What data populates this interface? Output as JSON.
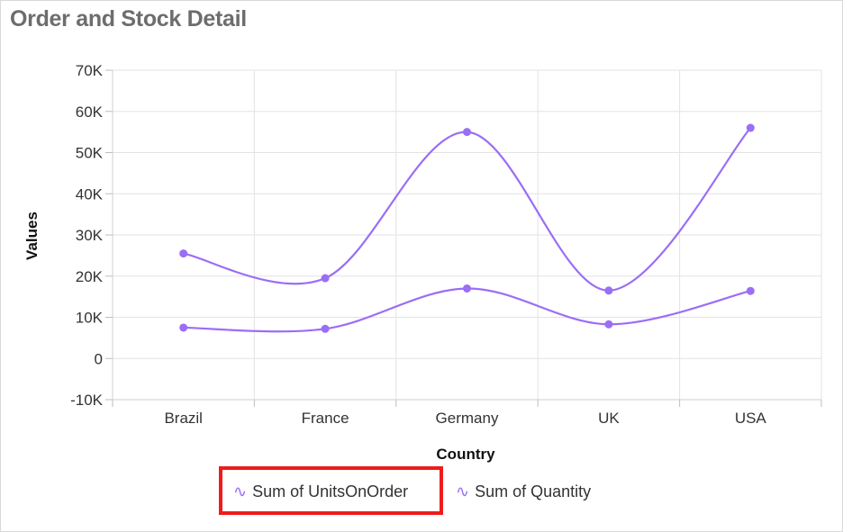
{
  "title": "Order and Stock Detail",
  "colors": {
    "series": "#9a6ef5",
    "grid": "#e3e3e3",
    "highlight": "#ee1c1c",
    "title": "#6d6d6d"
  },
  "legend": {
    "icon": "line-series-icon",
    "items": [
      "Sum of UnitsOnOrder",
      "Sum of Quantity"
    ],
    "highlighted_index": 0
  },
  "chart_data": {
    "type": "line",
    "smooth": true,
    "categories": [
      "Brazil",
      "France",
      "Germany",
      "UK",
      "USA"
    ],
    "series": [
      {
        "name": "Sum of UnitsOnOrder",
        "values": [
          7500,
          7200,
          17000,
          8300,
          16400
        ]
      },
      {
        "name": "Sum of Quantity",
        "values": [
          25500,
          19500,
          55000,
          16500,
          56000
        ]
      }
    ],
    "xlabel": "Country",
    "ylabel": "Values",
    "ylim": [
      -10000,
      70000
    ],
    "yticks": [
      -10000,
      0,
      10000,
      20000,
      30000,
      40000,
      50000,
      60000,
      70000
    ],
    "ytick_labels": [
      "-10K",
      "0",
      "10K",
      "20K",
      "30K",
      "40K",
      "50K",
      "60K",
      "70K"
    ],
    "grid": true,
    "legend_position": "bottom"
  }
}
